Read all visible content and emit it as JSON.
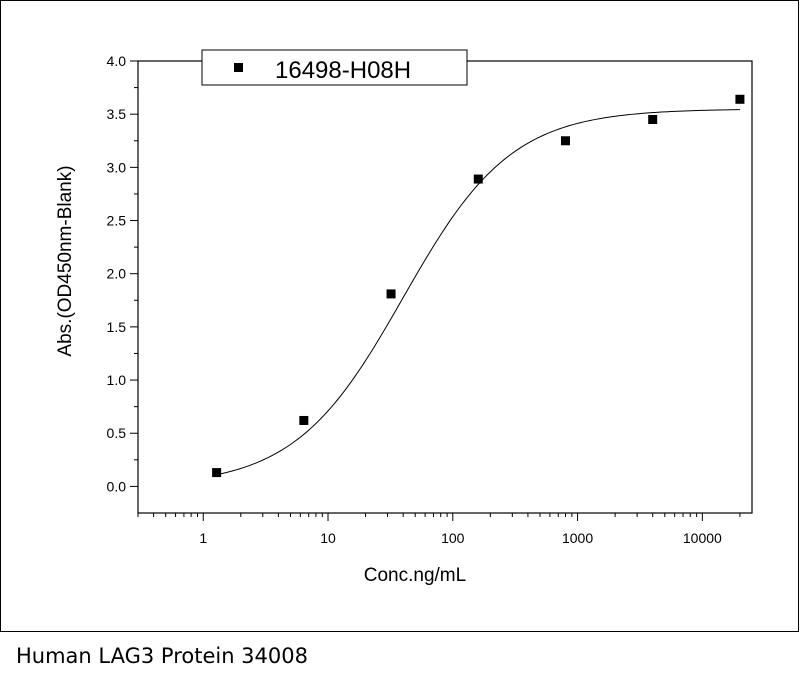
{
  "caption": "Human LAG3 Protein 34008",
  "chart_data": {
    "type": "scatter",
    "title": "",
    "xlabel": "Conc.ng/mL",
    "ylabel": "Abs.(OD450nm-Blank)",
    "x_scale": "log",
    "xlim": [
      0.3,
      25000
    ],
    "ylim": [
      -0.25,
      4.0
    ],
    "x_ticks": [
      1,
      10,
      100,
      1000,
      10000
    ],
    "x_tick_labels": [
      "1",
      "10",
      "100",
      "1000",
      "10000"
    ],
    "y_ticks": [
      0.0,
      0.5,
      1.0,
      1.5,
      2.0,
      2.5,
      3.0,
      3.5,
      4.0
    ],
    "y_tick_labels": [
      "0.0",
      "0.5",
      "1.0",
      "1.5",
      "2.0",
      "2.5",
      "3.0",
      "3.5",
      "4.0"
    ],
    "grid": false,
    "legend_position": "top-left",
    "series": [
      {
        "name": "16498-H08H",
        "marker": "square",
        "x": [
          1.28,
          6.4,
          32,
          160,
          800,
          4000,
          20000
        ],
        "y": [
          0.13,
          0.62,
          1.81,
          2.89,
          3.25,
          3.45,
          3.64
        ]
      }
    ],
    "fit_curve": {
      "type": "4PL",
      "bottom": 0.0,
      "top": 3.55,
      "ec50": 40,
      "hill": 1.0,
      "x_range": [
        1.28,
        20000
      ]
    },
    "colors": {
      "marker": "#000000",
      "line": "#000000",
      "axis": "#000000"
    }
  }
}
